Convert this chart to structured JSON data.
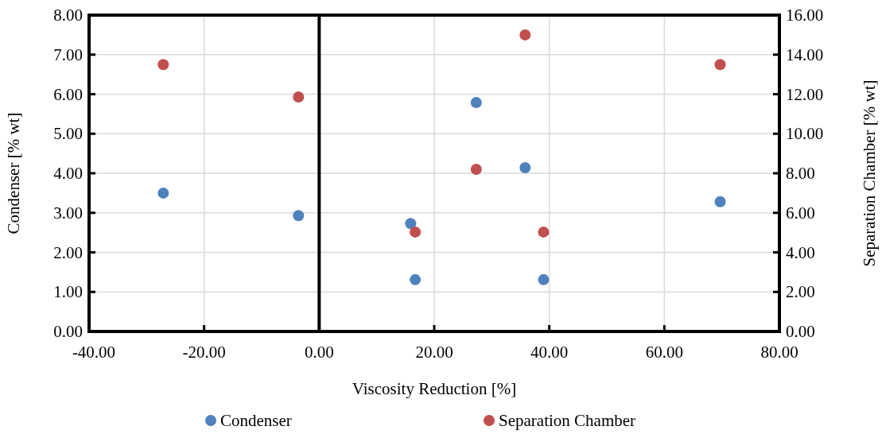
{
  "chart_data": {
    "type": "scatter",
    "xlabel": "Viscosity Reduction [%]",
    "ylabel": "Condenser [% wt]",
    "y2label": "Separation Chamber [% wt]",
    "series": [
      {
        "name": "Condenser",
        "color": "#4f81bd",
        "x": [
          -27.1,
          -3.6,
          15.9,
          16.7,
          27.3,
          35.8,
          39.0,
          69.7
        ],
        "values": [
          3.5,
          2.93,
          2.73,
          1.31,
          5.79,
          4.14,
          1.31,
          3.28
        ]
      },
      {
        "name": "Separation Chamber",
        "color": "#c0504d",
        "axis": "y2",
        "x": [
          -27.1,
          -3.6,
          16.7,
          27.3,
          35.8,
          39.0,
          69.7
        ],
        "values": [
          13.5,
          11.86,
          5.03,
          8.2,
          15.0,
          5.03,
          13.5
        ]
      }
    ],
    "xlim": [
      -40,
      80
    ],
    "xticks": [
      {
        "value": -40,
        "label": "-40.00"
      },
      {
        "value": -20,
        "label": "-20.00"
      },
      {
        "value": 0,
        "label": "0.00"
      },
      {
        "value": 20,
        "label": "20.00"
      },
      {
        "value": 40,
        "label": "40.00"
      },
      {
        "value": 60,
        "label": "60.00"
      },
      {
        "value": 80,
        "label": "80.00"
      }
    ],
    "ylim": [
      0,
      8
    ],
    "yticks": [
      {
        "value": 0,
        "label": "0.00"
      },
      {
        "value": 1,
        "label": "1.00"
      },
      {
        "value": 2,
        "label": "2.00"
      },
      {
        "value": 3,
        "label": "3.00"
      },
      {
        "value": 4,
        "label": "4.00"
      },
      {
        "value": 5,
        "label": "5.00"
      },
      {
        "value": 6,
        "label": "6.00"
      },
      {
        "value": 7,
        "label": "7.00"
      },
      {
        "value": 8,
        "label": "8.00"
      }
    ],
    "y2lim": [
      0,
      16
    ],
    "y2ticks": [
      {
        "value": 0,
        "label": "0.00"
      },
      {
        "value": 2,
        "label": "2.00"
      },
      {
        "value": 4,
        "label": "4.00"
      },
      {
        "value": 6,
        "label": "6.00"
      },
      {
        "value": 8,
        "label": "8.00"
      },
      {
        "value": 10,
        "label": "10.00"
      },
      {
        "value": 12,
        "label": "12.00"
      },
      {
        "value": 14,
        "label": "14.00"
      },
      {
        "value": 16,
        "label": "16.00"
      }
    ],
    "grid": true,
    "legend": "bottom",
    "marker": "circle"
  }
}
